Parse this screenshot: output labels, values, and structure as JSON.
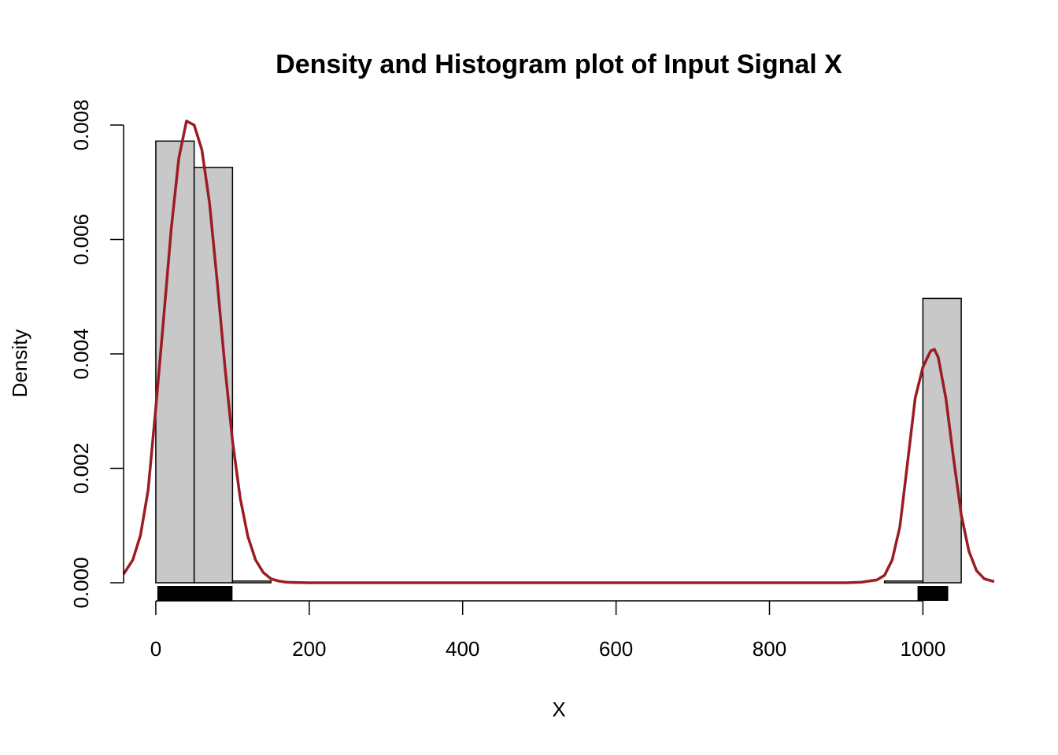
{
  "chart_data": {
    "type": "bar",
    "title": "Density and Histogram plot of Input Signal X",
    "xlabel": "X",
    "ylabel": "Density",
    "xlim": [
      -42,
      1093
    ],
    "ylim": [
      0,
      0.008
    ],
    "x_ticks": [
      0,
      200,
      400,
      600,
      800,
      1000
    ],
    "x_tick_labels": [
      "0",
      "200",
      "400",
      "600",
      "800",
      "1000"
    ],
    "y_ticks": [
      0,
      0.002,
      0.004,
      0.006,
      0.008
    ],
    "y_tick_labels": [
      "0.000",
      "0.002",
      "0.004",
      "0.006",
      "0.008"
    ],
    "histogram": {
      "bins": [
        {
          "start": 0,
          "end": 50,
          "density": 0.00772
        },
        {
          "start": 50,
          "end": 100,
          "density": 0.00726
        },
        {
          "start": 100,
          "end": 150,
          "density": 3e-05
        },
        {
          "start": 950,
          "end": 1000,
          "density": 3e-05
        },
        {
          "start": 1000,
          "end": 1050,
          "density": 0.00497
        }
      ],
      "fill_color": "#c8c8c8"
    },
    "density_curve": {
      "color": "#9b1c24",
      "x": [
        -42,
        -30,
        -20,
        -10,
        0,
        10,
        20,
        30,
        40,
        50,
        60,
        70,
        80,
        90,
        100,
        110,
        120,
        130,
        140,
        150,
        160,
        170,
        180,
        200,
        300,
        400,
        500,
        600,
        700,
        800,
        900,
        920,
        940,
        950,
        960,
        970,
        980,
        990,
        1000,
        1010,
        1015,
        1020,
        1030,
        1040,
        1050,
        1060,
        1070,
        1080,
        1093
      ],
      "y": [
        0.00015,
        0.0004,
        0.00083,
        0.00162,
        0.00306,
        0.00459,
        0.00617,
        0.00742,
        0.00807,
        0.008,
        0.00757,
        0.00664,
        0.00527,
        0.00379,
        0.00248,
        0.00148,
        0.00081,
        0.0004,
        0.00018,
        7e-05,
        3e-05,
        1e-05,
        5e-06,
        0.0,
        0.0,
        0.0,
        0.0,
        0.0,
        0.0,
        0.0,
        0.0,
        1e-05,
        5e-05,
        0.00013,
        0.0004,
        0.00098,
        0.0021,
        0.00323,
        0.00377,
        0.00405,
        0.00408,
        0.00394,
        0.00322,
        0.00217,
        0.00119,
        0.00055,
        0.00021,
        7e-05,
        2e-05
      ]
    },
    "rug": [
      {
        "start": 2,
        "end": 100
      },
      {
        "start": 993,
        "end": 1033
      }
    ],
    "grid": false,
    "legend": "none"
  }
}
